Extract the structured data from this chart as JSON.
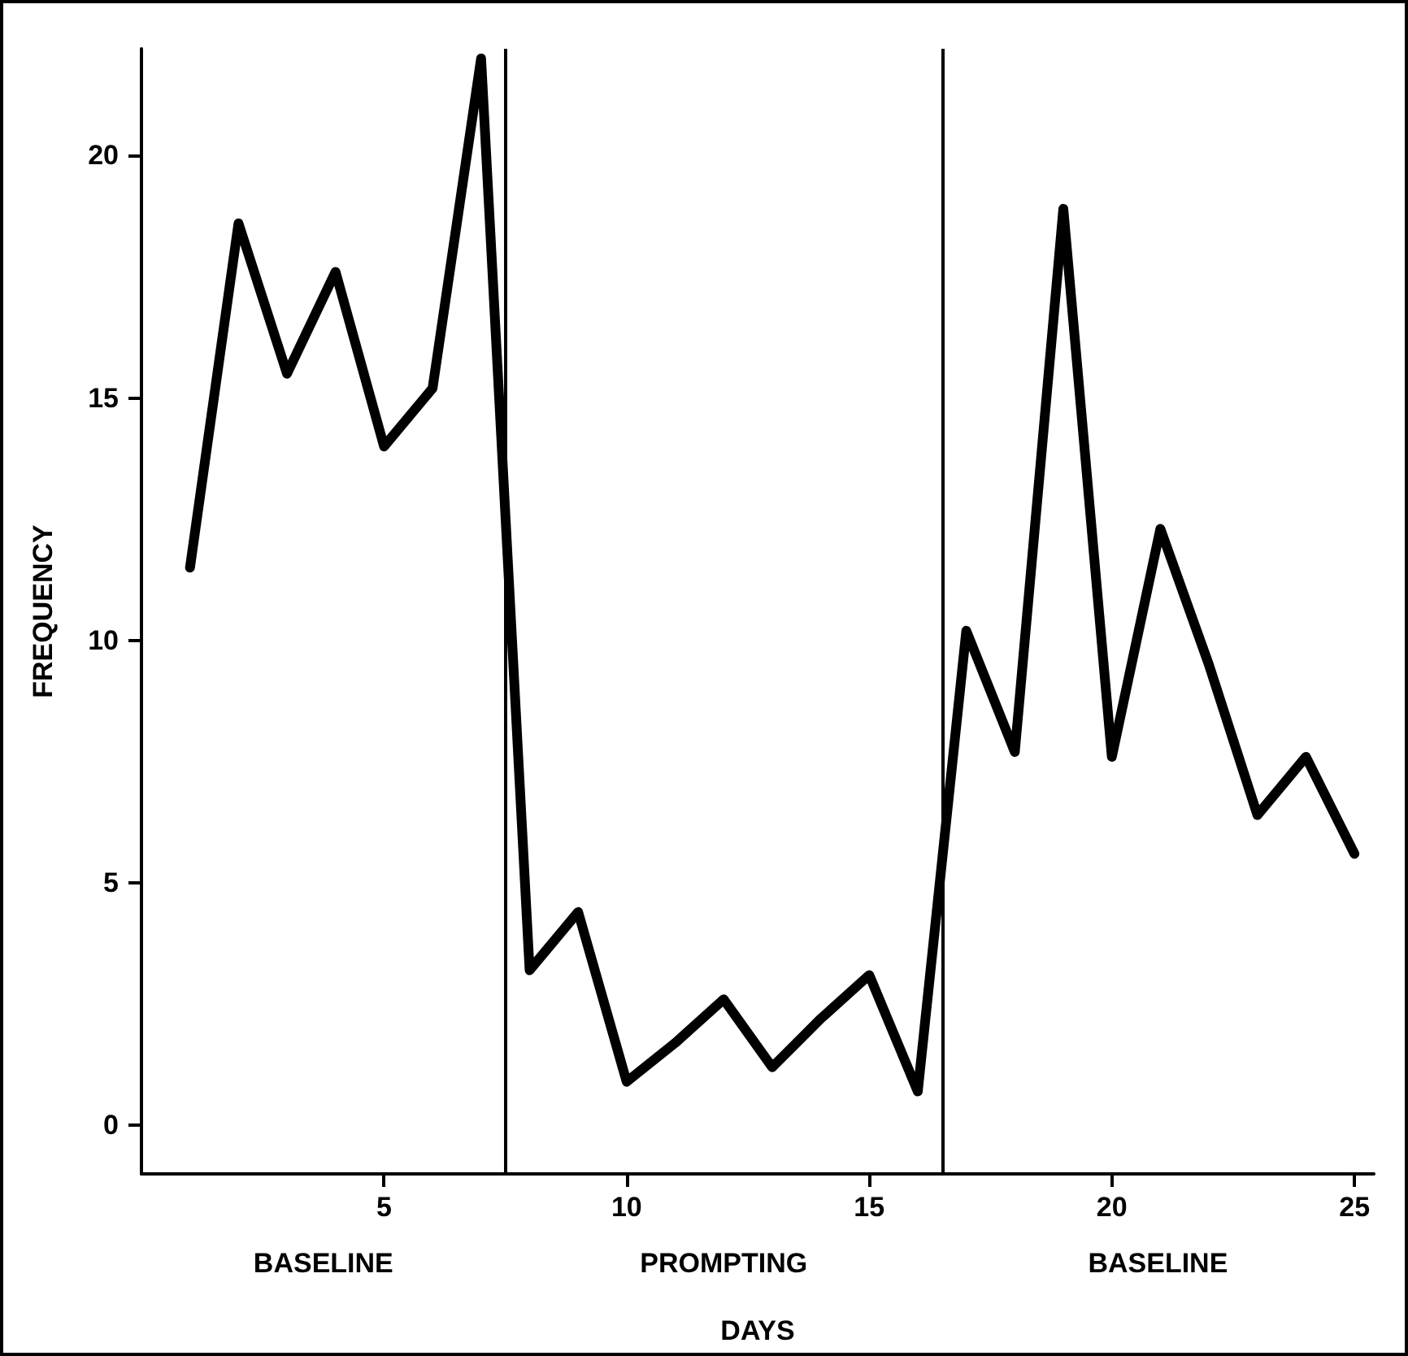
{
  "chart_data": {
    "type": "line",
    "xlabel": "DAYS",
    "ylabel": "FREQUENCY",
    "x": [
      1,
      2,
      3,
      4,
      5,
      6,
      7,
      8,
      9,
      10,
      11,
      12,
      13,
      14,
      15,
      16,
      17,
      18,
      19,
      20,
      21,
      22,
      23,
      24,
      25
    ],
    "series": [
      {
        "color": "#000000",
        "values": [
          11.5,
          18.6,
          15.5,
          17.6,
          14.0,
          15.2,
          22,
          3.2,
          4.4,
          0.9,
          1.7,
          2.6,
          1.2,
          2.2,
          3.1,
          0.7,
          10.2,
          7.7,
          18.9,
          7.6,
          12.3,
          9.5,
          6.4,
          7.6,
          5.6
        ]
      }
    ],
    "xlim": [
      0,
      25.4
    ],
    "ylim": [
      -1,
      22.2
    ],
    "xticks": [
      5,
      10,
      15,
      20,
      25
    ],
    "yticks": [
      0,
      5,
      10,
      15,
      20
    ],
    "ref_lines": [
      {
        "axis": "x",
        "value": 7.5,
        "color": "#000000"
      },
      {
        "axis": "x",
        "value": 16.5,
        "color": "#000000"
      }
    ],
    "annotations": [
      "BASELINE",
      "PROMPTING",
      "BASELINE"
    ],
    "grid": false,
    "marker": "none",
    "line_style": "solid"
  }
}
